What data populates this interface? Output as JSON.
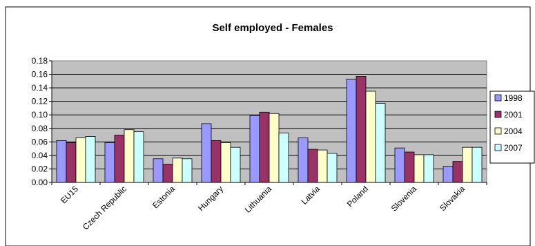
{
  "chart_data": {
    "type": "bar",
    "title": "Self employed - Females",
    "xlabel": "",
    "ylabel": "",
    "ylim": [
      0,
      0.18
    ],
    "y_ticks": [
      "0.00",
      "0.02",
      "0.04",
      "0.06",
      "0.08",
      "0.10",
      "0.12",
      "0.14",
      "0.16",
      "0.18"
    ],
    "grid": true,
    "legend_position": "right",
    "categories": [
      "EU15",
      "Czech Republic",
      "Estonia",
      "Hungary",
      "Lithuania",
      "Latvia",
      "Poland",
      "Slovenia",
      "Slovakia"
    ],
    "series": [
      {
        "name": "1998",
        "color": "#9999ff",
        "values": [
          0.062,
          0.059,
          0.035,
          0.087,
          0.099,
          0.066,
          0.153,
          0.051,
          0.024
        ]
      },
      {
        "name": "2001",
        "color": "#993366",
        "values": [
          0.059,
          0.07,
          0.027,
          0.062,
          0.104,
          0.049,
          0.157,
          0.045,
          0.031
        ]
      },
      {
        "name": "2004",
        "color": "#ffffcc",
        "values": [
          0.066,
          0.078,
          0.036,
          0.059,
          0.102,
          0.048,
          0.135,
          0.041,
          0.052
        ]
      },
      {
        "name": "2007",
        "color": "#ccffff",
        "values": [
          0.068,
          0.075,
          0.035,
          0.052,
          0.073,
          0.043,
          0.117,
          0.041,
          0.052
        ]
      }
    ],
    "plot_background": "#c0c0c0"
  }
}
